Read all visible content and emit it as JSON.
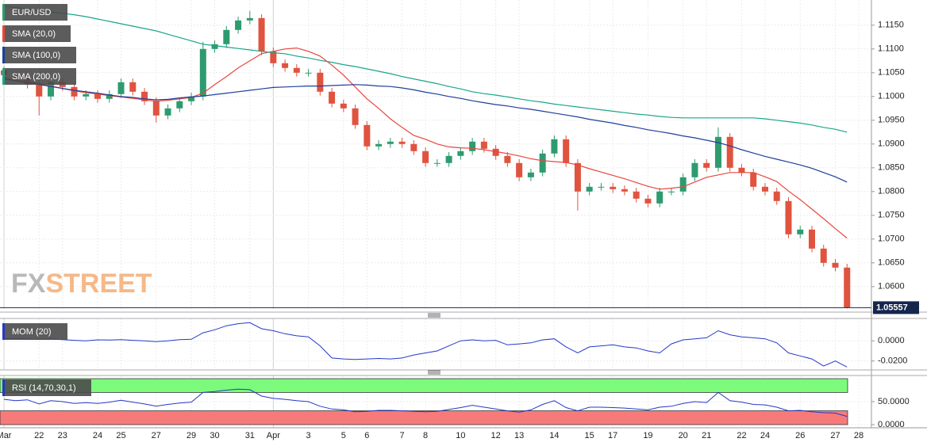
{
  "chart_data": [
    {
      "type": "candlestick",
      "name": "EUR/USD",
      "watermark": [
        "FX",
        "STREET"
      ],
      "up_color": "#2e9b6f",
      "down_color": "#e0533f",
      "open": [
        1.1055,
        1.1045,
        1.104,
        1.1025,
        1.1,
        1.103,
        1.102,
        1.1,
        1.1005,
        1.0995,
        1.1005,
        1.103,
        1.101,
        1.099,
        1.096,
        1.0975,
        1.099,
        1.1,
        1.11,
        1.111,
        1.114,
        1.116,
        1.1165,
        1.1095,
        1.107,
        1.106,
        1.105,
        1.105,
        1.101,
        1.0985,
        1.0975,
        1.094,
        1.0895,
        1.09,
        1.0905,
        1.09,
        1.0885,
        1.086,
        1.086,
        1.0875,
        1.0885,
        1.0905,
        1.089,
        1.0875,
        1.086,
        1.083,
        1.084,
        1.088,
        1.091,
        1.086,
        1.08,
        1.081,
        1.081,
        1.0805,
        1.08,
        1.0785,
        1.0775,
        1.08,
        1.08,
        1.083,
        1.086,
        1.085,
        1.0915,
        1.085,
        1.084,
        1.081,
        1.08,
        1.078,
        1.071,
        1.072,
        1.068,
        1.065,
        1.064,
        null
      ],
      "high": [
        1.1063,
        1.1053,
        1.1048,
        1.1033,
        1.1038,
        1.1038,
        1.1028,
        1.1013,
        1.1013,
        1.1013,
        1.1038,
        1.1038,
        1.1018,
        1.0998,
        1.0983,
        1.0998,
        1.1008,
        1.1115,
        1.1118,
        1.1148,
        1.1168,
        1.118,
        1.1173,
        1.1103,
        1.1078,
        1.1068,
        1.1058,
        1.1058,
        1.1018,
        1.0993,
        1.0983,
        1.0948,
        1.0908,
        1.0913,
        1.0913,
        1.0908,
        1.0893,
        1.0868,
        1.0883,
        1.0893,
        1.0913,
        1.0913,
        1.0898,
        1.0883,
        1.0868,
        1.0848,
        1.0888,
        1.0918,
        1.0918,
        1.0868,
        1.0818,
        1.0818,
        1.0818,
        1.0813,
        1.0808,
        1.0793,
        1.0808,
        1.0808,
        1.0838,
        1.0868,
        1.0868,
        1.0935,
        1.0923,
        1.0858,
        1.0848,
        1.0818,
        1.0808,
        1.0788,
        1.0728,
        1.0728,
        1.0688,
        1.0658,
        1.0648,
        null
      ],
      "low": [
        1.1037,
        1.1032,
        1.1017,
        1.096,
        1.0992,
        1.1012,
        1.0992,
        1.0992,
        1.0987,
        1.0987,
        1.0997,
        1.1002,
        1.0982,
        1.0945,
        1.0952,
        1.0967,
        1.0982,
        1.0992,
        1.1092,
        1.1102,
        1.1132,
        1.1152,
        1.1087,
        1.1062,
        1.1052,
        1.1042,
        1.1042,
        1.1002,
        1.0977,
        1.0967,
        1.0932,
        1.0887,
        1.0887,
        1.0892,
        1.0892,
        1.0877,
        1.0852,
        1.0852,
        1.0852,
        1.0867,
        1.0877,
        1.0882,
        1.0867,
        1.0852,
        1.0822,
        1.0822,
        1.0832,
        1.0872,
        1.0852,
        1.076,
        1.0792,
        1.0802,
        1.0797,
        1.0792,
        1.0777,
        1.0767,
        1.0767,
        1.0792,
        1.0792,
        1.0822,
        1.0842,
        1.0842,
        1.0842,
        1.0832,
        1.0802,
        1.0792,
        1.0772,
        1.0702,
        1.0702,
        1.0672,
        1.0642,
        1.0632,
        1.0554,
        null
      ],
      "close": [
        1.1045,
        1.104,
        1.1025,
        1.1,
        1.103,
        1.102,
        1.1,
        1.1005,
        1.0995,
        1.1005,
        1.103,
        1.101,
        1.099,
        1.096,
        1.0975,
        1.099,
        1.1,
        1.11,
        1.111,
        1.114,
        1.116,
        1.1165,
        1.1095,
        1.107,
        1.106,
        1.105,
        1.105,
        1.101,
        1.0985,
        1.0975,
        1.094,
        1.0895,
        1.09,
        1.0905,
        1.09,
        1.0885,
        1.086,
        1.086,
        1.0875,
        1.0885,
        1.0905,
        1.089,
        1.0875,
        1.086,
        1.083,
        1.084,
        1.088,
        1.091,
        1.086,
        1.08,
        1.081,
        1.081,
        1.0805,
        1.08,
        1.0785,
        1.0775,
        1.08,
        1.08,
        1.083,
        1.086,
        1.085,
        1.0915,
        1.085,
        1.084,
        1.081,
        1.08,
        1.078,
        1.071,
        1.072,
        1.068,
        1.065,
        1.064,
        1.0556,
        null
      ],
      "series": [
        {
          "name": "SMA (20,0)",
          "color": "#e8473c",
          "values": [
            1.104,
            1.1035,
            1.1031,
            1.1027,
            1.1022,
            1.1017,
            1.1012,
            1.1008,
            1.1005,
            1.1002,
            1.0999,
            1.0996,
            1.0993,
            1.099,
            1.0992,
            1.0995,
            1.0998,
            1.1007,
            1.1025,
            1.1042,
            1.106,
            1.1075,
            1.109,
            1.1095,
            1.11,
            1.1102,
            1.1095,
            1.1085,
            1.1066,
            1.1045,
            1.102,
            1.0995,
            1.0975,
            1.0953,
            1.0935,
            1.0918,
            1.091,
            1.09,
            1.0894,
            1.0892,
            1.0891,
            1.0888,
            1.0884,
            1.088,
            1.0875,
            1.0869,
            1.0865,
            1.0863,
            1.0861,
            1.0856,
            1.0848,
            1.0841,
            1.0834,
            1.0827,
            1.0819,
            1.0811,
            1.0805,
            1.0807,
            1.081,
            1.082,
            1.083,
            1.0835,
            1.084,
            1.084,
            1.084,
            1.0831,
            1.0821,
            1.0801,
            1.0783,
            1.0763,
            1.0743,
            1.0722,
            1.0702,
            null
          ]
        },
        {
          "name": "SMA (100,0)",
          "color": "#1f3f9a",
          "values": [
            1.1037,
            1.1033,
            1.1029,
            1.1025,
            1.1021,
            1.1017,
            1.1013,
            1.101,
            1.1007,
            1.1003,
            1.1,
            1.0998,
            1.0995,
            1.0993,
            1.0994,
            1.0997,
            1.0999,
            1.1001,
            1.1004,
            1.1007,
            1.101,
            1.1013,
            1.1016,
            1.1019,
            1.102,
            1.1021,
            1.1022,
            1.1022,
            1.1023,
            1.1024,
            1.1025,
            1.1024,
            1.1022,
            1.1021,
            1.1018,
            1.1014,
            1.1009,
            1.1005,
            1.1,
            1.0996,
            1.0991,
            1.0987,
            1.0983,
            1.098,
            1.0976,
            1.0973,
            1.0969,
            1.0965,
            1.0961,
            1.0957,
            1.0952,
            1.0948,
            1.0944,
            1.0939,
            1.0935,
            1.093,
            1.0926,
            1.0922,
            1.0917,
            1.0913,
            1.0908,
            1.0903,
            1.0896,
            1.0888,
            1.0881,
            1.0874,
            1.0868,
            1.0862,
            1.0856,
            1.0849,
            1.084,
            1.0831,
            1.082,
            null
          ]
        },
        {
          "name": "SMA (200,0)",
          "color": "#1aa58a",
          "values": [
            1.119,
            1.1187,
            1.1184,
            1.1181,
            1.1178,
            1.1175,
            1.1172,
            1.1168,
            1.1163,
            1.1158,
            1.1153,
            1.1148,
            1.1143,
            1.1138,
            1.1131,
            1.1124,
            1.1117,
            1.111,
            1.1107,
            1.1104,
            1.1101,
            1.1098,
            1.1095,
            1.1092,
            1.109,
            1.1085,
            1.1081,
            1.1076,
            1.1072,
            1.1067,
            1.1063,
            1.1058,
            1.1053,
            1.1048,
            1.1042,
            1.1037,
            1.1032,
            1.1027,
            1.1021,
            1.1016,
            1.101,
            1.1006,
            1.1003,
            1.0999,
            1.0995,
            1.0991,
            1.0988,
            1.0984,
            1.0981,
            1.0978,
            1.0975,
            1.0972,
            1.0969,
            1.0966,
            1.0963,
            1.0961,
            1.0958,
            1.0956,
            1.0955,
            1.0955,
            1.0955,
            1.0955,
            1.0955,
            1.0955,
            1.0955,
            1.0953,
            1.095,
            1.0947,
            1.0944,
            1.094,
            1.0935,
            1.0931,
            1.0925,
            null
          ]
        }
      ],
      "last_price": 1.05557,
      "last_color": "#15264d",
      "ylim": [
        1.0553,
        1.1203
      ],
      "yticks": [
        {
          "value": 1.115,
          "label": "1.1150"
        },
        {
          "value": 1.11,
          "label": "1.1100"
        },
        {
          "value": 1.105,
          "label": "1.1050"
        },
        {
          "value": 1.1,
          "label": "1.1000"
        },
        {
          "value": 1.095,
          "label": "1.0950"
        },
        {
          "value": 1.09,
          "label": "1.0900"
        },
        {
          "value": 1.085,
          "label": "1.0850"
        },
        {
          "value": 1.08,
          "label": "1.0800"
        },
        {
          "value": 1.075,
          "label": "1.0750"
        },
        {
          "value": 1.07,
          "label": "1.0700"
        },
        {
          "value": 1.065,
          "label": "1.0650"
        },
        {
          "value": 1.06,
          "label": "1.0600"
        }
      ],
      "grid": true
    },
    {
      "type": "line",
      "series": [
        {
          "name": "MOM (20)",
          "color": "#2438c8",
          "values": [
            0.002,
            0.0025,
            0.0018,
            0.0015,
            0.002,
            0.0012,
            0.0005,
            0.0,
            0.001,
            0.0008,
            0.0012,
            0.0005,
            0.0,
            -0.0008,
            0.0,
            0.0012,
            0.0015,
            0.008,
            0.011,
            0.015,
            0.017,
            0.018,
            0.012,
            0.01,
            0.007,
            0.005,
            0.004,
            -0.005,
            -0.017,
            -0.018,
            -0.0185,
            -0.018,
            -0.0175,
            -0.018,
            -0.017,
            -0.014,
            -0.012,
            -0.01,
            -0.005,
            0.0,
            0.001,
            0.0,
            0.0005,
            -0.004,
            -0.003,
            -0.002,
            0.001,
            0.002,
            -0.006,
            -0.012,
            -0.006,
            -0.005,
            -0.004,
            -0.006,
            -0.007,
            -0.01,
            -0.012,
            -0.003,
            0.001,
            0.002,
            0.003,
            0.01,
            0.006,
            0.004,
            0.003,
            0.002,
            -0.002,
            -0.012,
            -0.015,
            -0.018,
            -0.025,
            -0.02,
            -0.026,
            null
          ]
        }
      ],
      "ylim": [
        -0.0281,
        0.0222
      ],
      "yticks": [
        {
          "value": 0,
          "label": "0.0000"
        },
        {
          "value": -0.02,
          "label": "-0.0200"
        }
      ],
      "grid": true
    },
    {
      "type": "line",
      "series": [
        {
          "name": "RSI (14,70,30,1)",
          "color": "#2438c8",
          "values": [
            55,
            52,
            54,
            45,
            52,
            50,
            46,
            48,
            46,
            49,
            53,
            49,
            45,
            40,
            44,
            47,
            49,
            70,
            72,
            75,
            77,
            76,
            62,
            57,
            55,
            52,
            50,
            40,
            34,
            32,
            28,
            29,
            31,
            31,
            30,
            29,
            28,
            29,
            33,
            37,
            42,
            38,
            34,
            30,
            27,
            32,
            44,
            52,
            37,
            30,
            38,
            38,
            37,
            36,
            34,
            32,
            38,
            40,
            46,
            50,
            48,
            70,
            52,
            49,
            44,
            43,
            38,
            30,
            31,
            28,
            26,
            25,
            18,
            null
          ]
        }
      ],
      "bands": [
        {
          "from": 70,
          "to": 100,
          "color": "#7cfa7c"
        },
        {
          "from": 0,
          "to": 30,
          "color": "#f77a7a"
        }
      ],
      "ylim": [
        -6.9,
        106.9
      ],
      "yticks": [
        {
          "value": 50,
          "label": "50.0000"
        },
        {
          "value": 0,
          "label": "0.0000"
        }
      ],
      "grid": true,
      "categories": [
        "Mar",
        null,
        null,
        "22",
        null,
        "23",
        null,
        null,
        "24",
        null,
        "25",
        null,
        null,
        "27",
        null,
        null,
        "29",
        null,
        "30",
        null,
        null,
        "31",
        null,
        "Apr",
        null,
        null,
        "3",
        null,
        null,
        "5",
        null,
        "6",
        null,
        null,
        "7",
        null,
        "8",
        null,
        null,
        "10",
        null,
        null,
        "12",
        null,
        "13",
        null,
        null,
        "14",
        null,
        null,
        "15",
        null,
        "17",
        null,
        null,
        "19",
        null,
        null,
        "20",
        null,
        "21",
        null,
        null,
        "22",
        null,
        "24",
        null,
        null,
        "26",
        null,
        null,
        "27",
        null,
        "28"
      ]
    }
  ]
}
